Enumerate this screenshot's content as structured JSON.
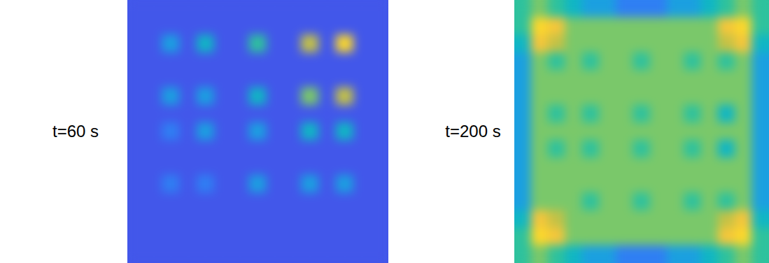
{
  "chart_data": [
    {
      "type": "heatmap",
      "title": "t=60 s",
      "tick_labels": false,
      "zlim": [
        0,
        10
      ],
      "cells": [
        [
          1,
          1,
          1,
          1,
          1,
          1,
          1,
          1,
          1,
          1,
          1,
          1,
          1,
          1,
          1
        ],
        [
          1,
          1,
          1,
          1,
          1,
          1,
          1,
          1,
          1,
          1,
          1,
          1,
          1,
          1,
          1
        ],
        [
          1,
          1,
          3,
          1,
          4,
          1,
          1,
          5,
          1,
          1,
          7,
          1,
          9,
          1,
          1
        ],
        [
          1,
          1,
          1,
          1,
          1,
          1,
          1,
          1,
          1,
          1,
          1,
          1,
          1,
          1,
          1
        ],
        [
          1,
          1,
          1,
          1,
          1,
          1,
          1,
          1,
          1,
          1,
          1,
          1,
          1,
          1,
          1
        ],
        [
          1,
          1,
          3,
          1,
          3,
          1,
          1,
          4,
          1,
          1,
          6,
          1,
          7,
          1,
          1
        ],
        [
          1,
          1,
          1,
          1,
          1,
          1,
          1,
          1,
          1,
          1,
          1,
          1,
          1,
          1,
          1
        ],
        [
          1,
          1,
          2,
          1,
          3,
          1,
          1,
          3,
          1,
          1,
          4,
          1,
          4,
          1,
          1
        ],
        [
          1,
          1,
          1,
          1,
          1,
          1,
          1,
          1,
          1,
          1,
          1,
          1,
          1,
          1,
          1
        ],
        [
          1,
          1,
          1,
          1,
          1,
          1,
          1,
          1,
          1,
          1,
          1,
          1,
          1,
          1,
          1
        ],
        [
          1,
          1,
          2,
          1,
          2,
          1,
          1,
          3,
          1,
          1,
          3,
          1,
          3,
          1,
          1
        ],
        [
          1,
          1,
          1,
          1,
          1,
          1,
          1,
          1,
          1,
          1,
          1,
          1,
          1,
          1,
          1
        ],
        [
          1,
          1,
          1,
          1,
          1,
          1,
          1,
          1,
          1,
          1,
          1,
          1,
          1,
          1,
          1
        ],
        [
          1,
          1,
          1,
          1,
          1,
          1,
          1,
          1,
          1,
          1,
          1,
          1,
          1,
          1,
          1
        ],
        [
          1,
          1,
          1,
          1,
          1,
          1,
          1,
          1,
          1,
          1,
          1,
          1,
          1,
          1,
          1
        ]
      ]
    },
    {
      "type": "heatmap",
      "title": "t=200 s",
      "tick_labels": false,
      "zlim": [
        0,
        10
      ],
      "cells": [
        [
          5,
          6,
          5,
          4,
          3,
          3,
          2,
          2,
          2,
          3,
          3,
          4,
          5,
          6,
          5
        ],
        [
          5,
          9,
          8,
          6,
          6,
          6,
          6,
          6,
          6,
          6,
          6,
          6,
          8,
          9,
          5
        ],
        [
          4,
          8,
          7,
          6,
          6,
          6,
          6,
          6,
          6,
          6,
          6,
          6,
          7,
          8,
          4
        ],
        [
          3,
          6,
          5,
          6,
          5,
          6,
          6,
          5,
          6,
          6,
          5,
          6,
          5,
          6,
          3
        ],
        [
          3,
          6,
          6,
          6,
          6,
          6,
          6,
          6,
          6,
          6,
          6,
          6,
          6,
          6,
          3
        ],
        [
          3,
          6,
          6,
          6,
          6,
          6,
          6,
          6,
          6,
          6,
          6,
          6,
          6,
          6,
          3
        ],
        [
          3,
          6,
          5,
          6,
          5,
          6,
          6,
          5,
          6,
          6,
          5,
          6,
          4,
          6,
          3
        ],
        [
          3,
          6,
          6,
          6,
          6,
          6,
          6,
          6,
          6,
          6,
          6,
          6,
          6,
          6,
          3
        ],
        [
          3,
          6,
          5,
          6,
          5,
          6,
          6,
          5,
          6,
          6,
          5,
          6,
          4,
          6,
          3
        ],
        [
          3,
          6,
          6,
          6,
          6,
          6,
          6,
          6,
          6,
          6,
          6,
          6,
          6,
          6,
          3
        ],
        [
          3,
          6,
          6,
          6,
          6,
          6,
          6,
          6,
          6,
          6,
          6,
          6,
          6,
          6,
          3
        ],
        [
          3,
          6,
          6,
          6,
          5,
          6,
          6,
          5,
          6,
          6,
          5,
          6,
          5,
          6,
          3
        ],
        [
          4,
          8,
          7,
          6,
          6,
          6,
          6,
          6,
          6,
          6,
          6,
          6,
          7,
          8,
          4
        ],
        [
          5,
          9,
          8,
          6,
          6,
          6,
          6,
          6,
          6,
          6,
          6,
          6,
          8,
          9,
          5
        ],
        [
          5,
          6,
          5,
          4,
          3,
          3,
          2,
          2,
          2,
          3,
          3,
          4,
          5,
          6,
          5
        ]
      ]
    }
  ]
}
